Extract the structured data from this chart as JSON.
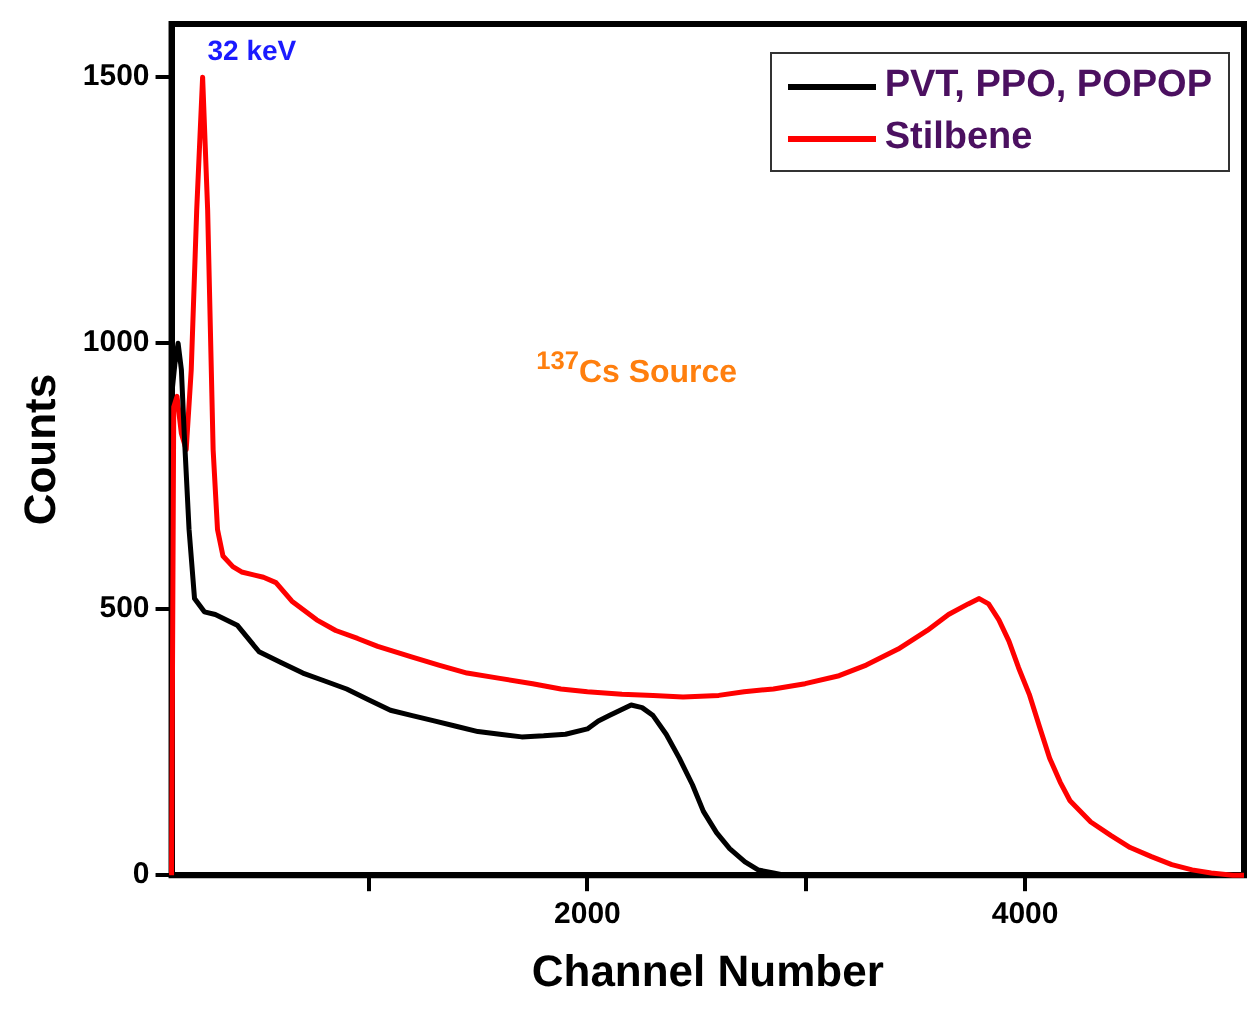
{
  "chart_data": {
    "type": "line",
    "xlabel": "Channel Number",
    "ylabel": "Counts",
    "xlim": [
      100,
      5000
    ],
    "ylim": [
      0,
      1600
    ],
    "xticks": [
      {
        "value": 1000,
        "label": null
      },
      2000,
      {
        "value": 3000,
        "label": null
      },
      4000
    ],
    "yticks": [
      0,
      500,
      1000,
      1500
    ],
    "grid": false,
    "legend": "top right",
    "marker": "none",
    "line_style": "solid",
    "annotations": [
      "32 keV",
      "$^{137}$Cs Source"
    ],
    "series": [
      {
        "name": "PVT, PPO, POPOP",
        "color": "#000000",
        "x": [
          100,
          115,
          130,
          145,
          158,
          180,
          205,
          250,
          300,
          400,
          500,
          600,
          700,
          800,
          900,
          1000,
          1100,
          1200,
          1300,
          1400,
          1500,
          1600,
          1700,
          1800,
          1900,
          2000,
          2050,
          2100,
          2150,
          2200,
          2250,
          2300,
          2360,
          2420,
          2480,
          2530,
          2590,
          2650,
          2720,
          2780,
          2850,
          2900,
          3000,
          3100,
          3200
        ],
        "values": [
          900,
          960,
          1000,
          950,
          830,
          650,
          520,
          495,
          490,
          470,
          420,
          400,
          380,
          365,
          350,
          330,
          310,
          300,
          290,
          280,
          270,
          265,
          260,
          262,
          265,
          275,
          290,
          300,
          310,
          320,
          315,
          300,
          265,
          220,
          170,
          120,
          80,
          50,
          25,
          10,
          4,
          0,
          0,
          0,
          0
        ]
      },
      {
        "name": "Stilbene",
        "color": "#ff0000",
        "x": [
          100,
          110,
          125,
          145,
          167,
          190,
          215,
          242,
          265,
          290,
          310,
          335,
          380,
          420,
          470,
          520,
          577,
          650,
          763,
          850,
          950,
          1042,
          1200,
          1321,
          1450,
          1600,
          1750,
          1879,
          2000,
          2158,
          2300,
          2437,
          2600,
          2716,
          2850,
          2995,
          3150,
          3274,
          3420,
          3553,
          3650,
          3740,
          3790,
          3833,
          3880,
          3926,
          3970,
          4019,
          4065,
          4112,
          4160,
          4205,
          4300,
          4391,
          4480,
          4577,
          4670,
          4763,
          4850,
          4949,
          5000
        ],
        "values": [
          0,
          880,
          900,
          830,
          800,
          950,
          1250,
          1500,
          1250,
          800,
          650,
          600,
          580,
          570,
          565,
          560,
          550,
          515,
          480,
          460,
          445,
          430,
          410,
          395,
          380,
          370,
          360,
          350,
          345,
          340,
          338,
          335,
          338,
          345,
          350,
          360,
          375,
          395,
          425,
          460,
          490,
          510,
          520,
          510,
          480,
          440,
          390,
          340,
          280,
          220,
          175,
          140,
          100,
          75,
          52,
          35,
          20,
          10,
          4,
          0,
          0
        ]
      }
    ]
  }
}
